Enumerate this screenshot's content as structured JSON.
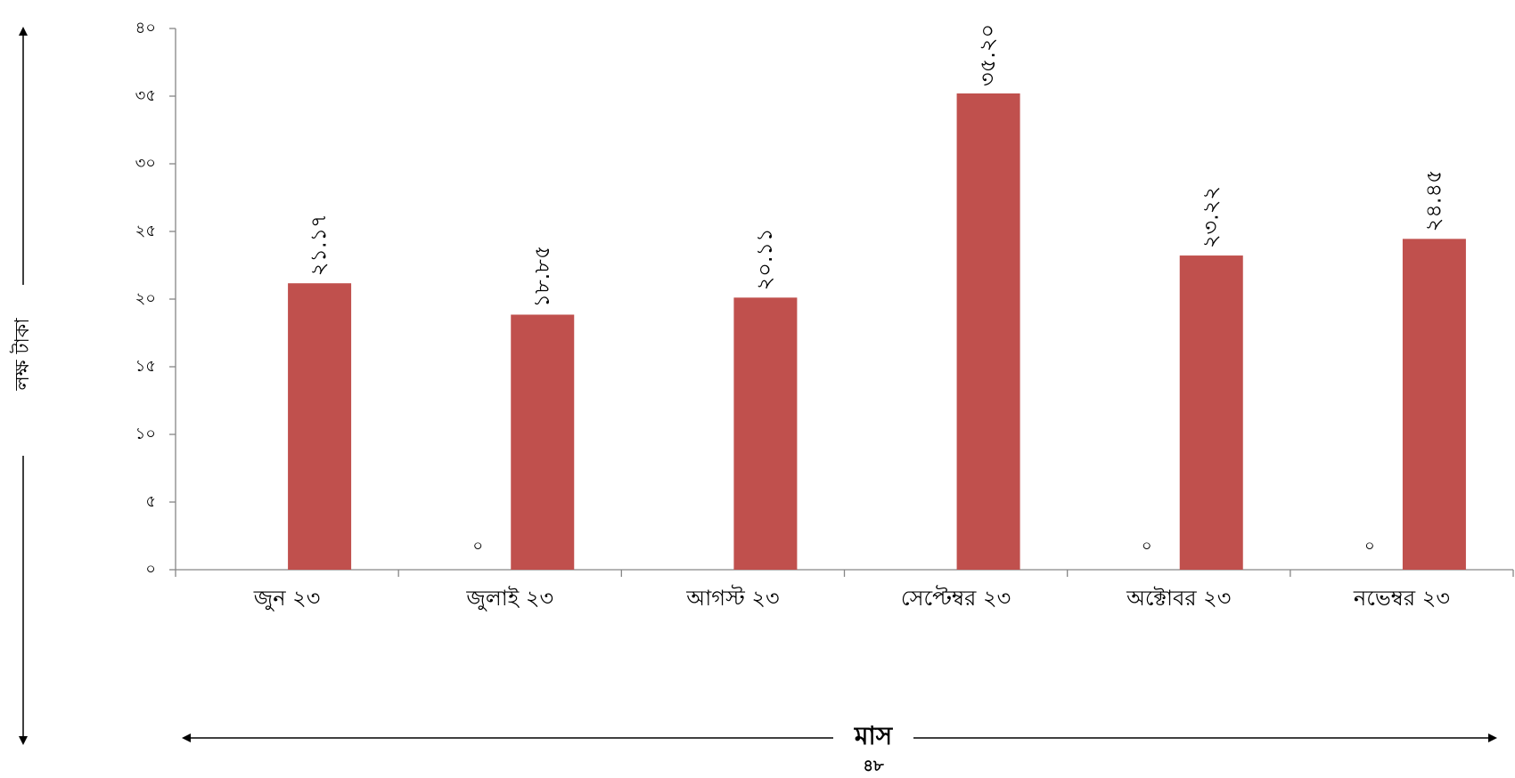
{
  "chart_data": {
    "type": "bar",
    "categories": [
      "জুন ২৩",
      "জুলাই ২৩",
      "আগস্ট ২৩",
      "সেপ্টেম্বর ২৩",
      "অক্টোবর ২৩",
      "নভেম্বর ২৩"
    ],
    "series": [
      {
        "values": [
          0,
          0,
          0,
          0,
          0,
          0
        ],
        "labels": [
          "",
          "০",
          "",
          "",
          "০",
          "০"
        ]
      },
      {
        "values": [
          21.17,
          18.85,
          20.11,
          35.2,
          23.22,
          24.45
        ],
        "labels": [
          "২১.১৭",
          "১৮.৮৫",
          "২০.১১",
          "৩৫.২০",
          "২৩.২২",
          "২৪.৪৫"
        ],
        "color": "#c0504d"
      }
    ],
    "ylim": [
      0,
      40
    ],
    "yticks": [
      0,
      5,
      10,
      15,
      20,
      25,
      30,
      35,
      40
    ],
    "ytick_labels": [
      "০",
      "৫",
      "১০",
      "১৫",
      "২০",
      "২৫",
      "৩০",
      "৩৫",
      "৪০"
    ],
    "ylabel": "লক্ষ টাকা",
    "xlabel": "মাস",
    "grid": false,
    "legend": "none"
  },
  "page_number": "৪৮"
}
